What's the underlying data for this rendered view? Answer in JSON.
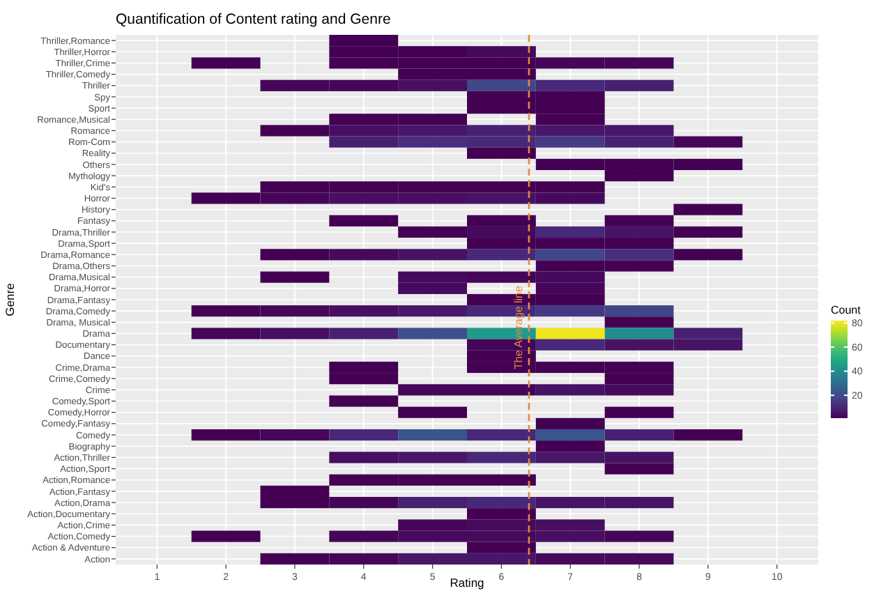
{
  "chart_data": {
    "type": "heatmap",
    "title": "Quantification of Content rating and Genre",
    "xlabel": "Rating",
    "ylabel": "Genre",
    "clabel": "Count",
    "x": [
      1,
      2,
      3,
      4,
      5,
      6,
      7,
      8,
      9,
      10
    ],
    "xlim": [
      0.4,
      10.6
    ],
    "xticks": [
      1,
      2,
      3,
      4,
      5,
      6,
      7,
      8,
      9,
      10
    ],
    "y_categories": [
      "Thriller,Romance",
      "Thriller,Horror",
      "Thriller,Crime",
      "Thriller,Comedy",
      "Thriller",
      "Spy",
      "Sport",
      "Romance,Musical",
      "Romance",
      "Rom-Com",
      "Reality",
      "Others",
      "Mythology",
      "Kid's",
      "Horror",
      "History",
      "Fantasy",
      "Drama,Thriller",
      "Drama,Sport",
      "Drama,Romance",
      "Drama,Others",
      "Drama,Musical",
      "Drama,Horror",
      "Drama,Fantasy",
      "Drama,Comedy",
      "Drama, Musical",
      "Drama",
      "Documentary",
      "Dance",
      "Crime,Drama",
      "Crime,Comedy",
      "Crime",
      "Comedy,Sport",
      "Comedy,Horror",
      "Comedy,Fantasy",
      "Comedy",
      "Biography",
      "Action,Thriller",
      "Action,Sport",
      "Action,Romance",
      "Action,Fantasy",
      "Action,Drama",
      "Action,Documentary",
      "Action,Crime",
      "Action,Comedy",
      "Action & Adventure",
      "Action"
    ],
    "cells": [
      [
        null,
        null,
        null,
        1,
        null,
        null,
        null,
        null,
        null,
        null
      ],
      [
        null,
        null,
        null,
        1,
        1,
        3,
        null,
        null,
        null,
        null
      ],
      [
        null,
        1,
        null,
        1,
        1,
        1,
        2,
        2,
        null,
        null
      ],
      [
        null,
        null,
        null,
        null,
        1,
        1,
        null,
        null,
        null,
        null
      ],
      [
        null,
        null,
        2,
        2,
        4,
        18,
        10,
        8,
        null,
        null
      ],
      [
        null,
        null,
        null,
        null,
        null,
        1,
        1,
        null,
        null,
        null
      ],
      [
        null,
        null,
        null,
        null,
        null,
        1,
        1,
        null,
        null,
        null
      ],
      [
        null,
        null,
        null,
        1,
        1,
        null,
        1,
        null,
        null,
        null
      ],
      [
        null,
        null,
        1,
        4,
        6,
        8,
        6,
        6,
        null,
        null
      ],
      [
        null,
        null,
        null,
        8,
        12,
        10,
        15,
        8,
        2,
        null
      ],
      [
        null,
        null,
        null,
        null,
        null,
        1,
        null,
        null,
        null,
        null
      ],
      [
        null,
        null,
        null,
        null,
        null,
        null,
        1,
        1,
        1,
        null
      ],
      [
        null,
        null,
        null,
        null,
        null,
        null,
        null,
        1,
        null,
        null
      ],
      [
        null,
        null,
        1,
        1,
        1,
        1,
        1,
        null,
        null,
        null
      ],
      [
        null,
        1,
        2,
        4,
        4,
        5,
        3,
        null,
        null,
        null
      ],
      [
        null,
        null,
        null,
        null,
        null,
        null,
        null,
        null,
        1,
        null
      ],
      [
        null,
        null,
        null,
        1,
        null,
        1,
        null,
        1,
        null,
        null
      ],
      [
        null,
        null,
        null,
        null,
        1,
        3,
        10,
        5,
        1,
        null
      ],
      [
        null,
        null,
        null,
        null,
        null,
        1,
        1,
        1,
        null,
        null
      ],
      [
        null,
        null,
        1,
        3,
        5,
        10,
        18,
        12,
        1,
        null
      ],
      [
        null,
        null,
        null,
        null,
        null,
        null,
        1,
        1,
        null,
        null
      ],
      [
        null,
        null,
        1,
        null,
        3,
        2,
        3,
        null,
        null,
        null
      ],
      [
        null,
        null,
        null,
        null,
        3,
        null,
        2,
        null,
        null,
        null
      ],
      [
        null,
        null,
        null,
        null,
        null,
        1,
        1,
        null,
        null,
        null
      ],
      [
        null,
        1,
        2,
        4,
        6,
        10,
        14,
        18,
        null,
        null
      ],
      [
        null,
        null,
        null,
        null,
        null,
        null,
        null,
        1,
        null,
        null
      ],
      [
        null,
        2,
        4,
        8,
        20,
        45,
        80,
        40,
        8,
        null
      ],
      [
        null,
        null,
        null,
        null,
        null,
        2,
        10,
        5,
        5,
        null
      ],
      [
        null,
        null,
        null,
        null,
        null,
        1,
        null,
        null,
        null,
        null
      ],
      [
        null,
        null,
        null,
        1,
        null,
        1,
        1,
        1,
        null,
        null
      ],
      [
        null,
        null,
        null,
        1,
        null,
        null,
        null,
        1,
        null,
        null
      ],
      [
        null,
        null,
        null,
        null,
        2,
        2,
        5,
        3,
        null,
        null
      ],
      [
        null,
        null,
        null,
        1,
        null,
        null,
        null,
        null,
        null,
        null
      ],
      [
        null,
        null,
        null,
        null,
        1,
        null,
        null,
        1,
        null,
        null
      ],
      [
        null,
        null,
        null,
        null,
        null,
        null,
        1,
        null,
        null,
        null
      ],
      [
        null,
        1,
        2,
        10,
        22,
        10,
        22,
        8,
        1,
        null
      ],
      [
        null,
        null,
        null,
        null,
        null,
        null,
        1,
        null,
        null,
        null
      ],
      [
        null,
        null,
        null,
        4,
        6,
        10,
        6,
        5,
        null,
        null
      ],
      [
        null,
        null,
        null,
        null,
        null,
        null,
        null,
        1,
        null,
        null
      ],
      [
        null,
        null,
        null,
        1,
        1,
        1,
        null,
        null,
        null,
        null
      ],
      [
        null,
        null,
        1,
        null,
        null,
        null,
        null,
        null,
        null,
        null
      ],
      [
        null,
        null,
        1,
        2,
        8,
        10,
        5,
        5,
        null,
        null
      ],
      [
        null,
        null,
        null,
        null,
        null,
        1,
        null,
        null,
        null,
        null
      ],
      [
        null,
        null,
        null,
        null,
        2,
        3,
        4,
        null,
        null,
        null
      ],
      [
        null,
        1,
        null,
        2,
        3,
        3,
        4,
        2,
        null,
        null
      ],
      [
        null,
        null,
        null,
        null,
        null,
        1,
        null,
        null,
        null,
        null
      ],
      [
        null,
        null,
        1,
        2,
        6,
        6,
        3,
        3,
        null,
        null
      ]
    ],
    "clim": [
      1,
      82
    ],
    "cticks": [
      20,
      40,
      60,
      80
    ],
    "grid": true,
    "ref_lines": [
      {
        "axis": "x",
        "value": 6.4,
        "label": "The Average line",
        "color": "#e8893a",
        "line_style": "dashed"
      }
    ]
  }
}
